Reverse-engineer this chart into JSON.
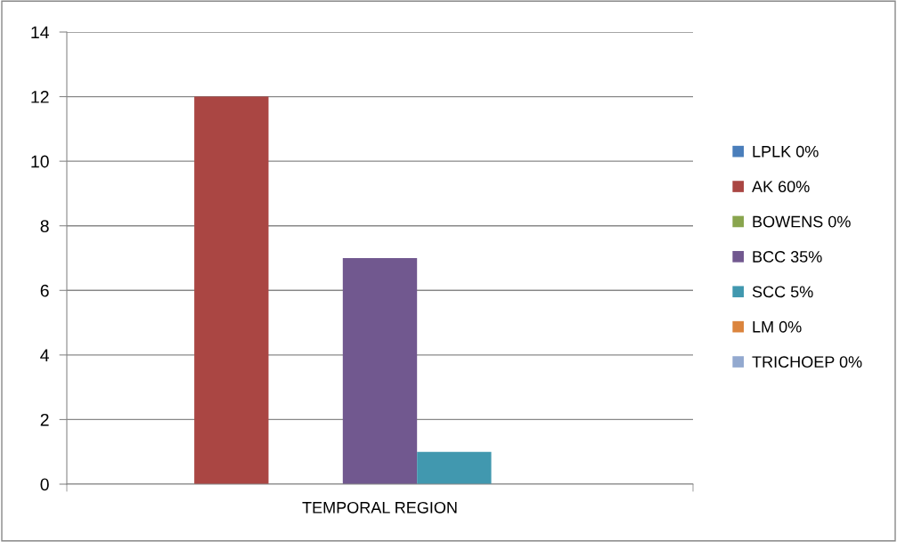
{
  "chart_data": {
    "type": "bar",
    "categories": [
      "TEMPORAL REGION"
    ],
    "series": [
      {
        "name": "LPLK 0%",
        "color": "#4a7ebb",
        "values": [
          0
        ]
      },
      {
        "name": "AK 60%",
        "color": "#aa4643",
        "values": [
          12
        ]
      },
      {
        "name": "BOWENS 0%",
        "color": "#89a54e",
        "values": [
          0
        ]
      },
      {
        "name": "BCC 35%",
        "color": "#71588f",
        "values": [
          7
        ]
      },
      {
        "name": "SCC 5%",
        "color": "#4198af",
        "values": [
          1
        ]
      },
      {
        "name": "LM 0%",
        "color": "#db843d",
        "values": [
          0
        ]
      },
      {
        "name": "TRICHOEP 0%",
        "color": "#93a9cf",
        "values": [
          0
        ]
      }
    ],
    "ylim": [
      0,
      14
    ],
    "yticks": [
      0,
      2,
      4,
      6,
      8,
      10,
      12,
      14
    ],
    "grid": "y",
    "legend": "right"
  }
}
